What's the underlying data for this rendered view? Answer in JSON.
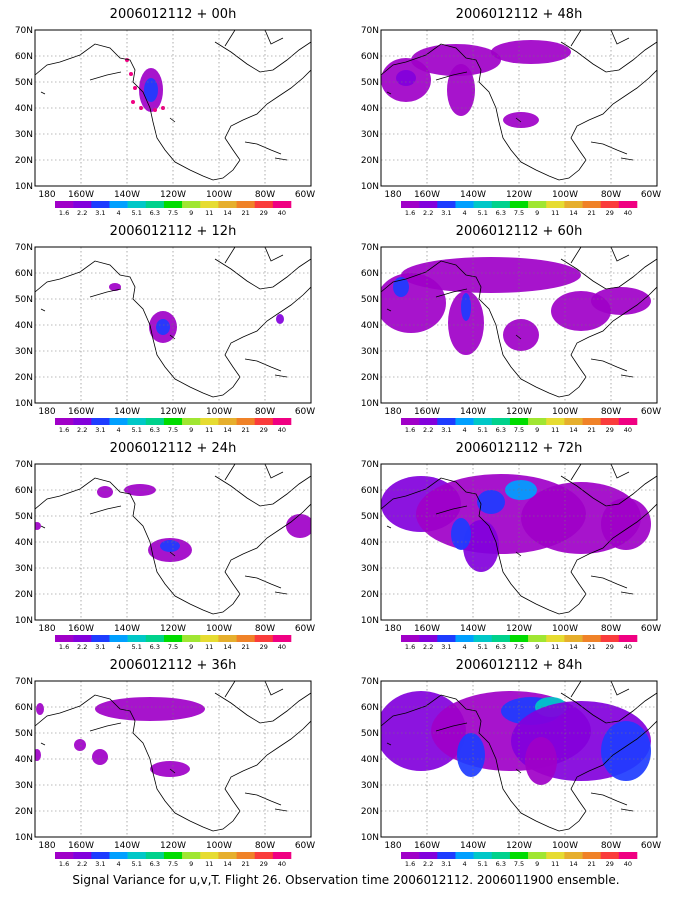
{
  "figure": {
    "caption": "Signal Variance for u,v,T. Flight 26. Observation time 2006012112. 2006011900 ensemble.",
    "lon_ticks": [
      "180",
      "160W",
      "140W",
      "120W",
      "100W",
      "80W",
      "60W"
    ],
    "lat_ticks": [
      "70N",
      "60N",
      "50N",
      "40N",
      "30N",
      "20N",
      "10N"
    ],
    "colorbar_labels": [
      "1.6",
      "2.2",
      "3.1",
      "4",
      "5.1",
      "6.3",
      "7.5",
      "9",
      "11",
      "14",
      "21",
      "29",
      "40"
    ],
    "colorbar_colors": [
      "#a000c8",
      "#8200dc",
      "#1e3cff",
      "#00a0ff",
      "#00c8c8",
      "#00d28c",
      "#00dc00",
      "#a0e632",
      "#e6dc32",
      "#e6af2d",
      "#f08228",
      "#fa3c3c",
      "#f00082"
    ],
    "panels": [
      {
        "title": "2006012112 + 00h"
      },
      {
        "title": "2006012112 + 48h"
      },
      {
        "title": "2006012112 + 12h"
      },
      {
        "title": "2006012112 + 60h"
      },
      {
        "title": "2006012112 + 24h"
      },
      {
        "title": "2006012112 + 72h"
      },
      {
        "title": "2006012112 + 36h"
      },
      {
        "title": "2006012112 + 84h"
      }
    ]
  }
}
